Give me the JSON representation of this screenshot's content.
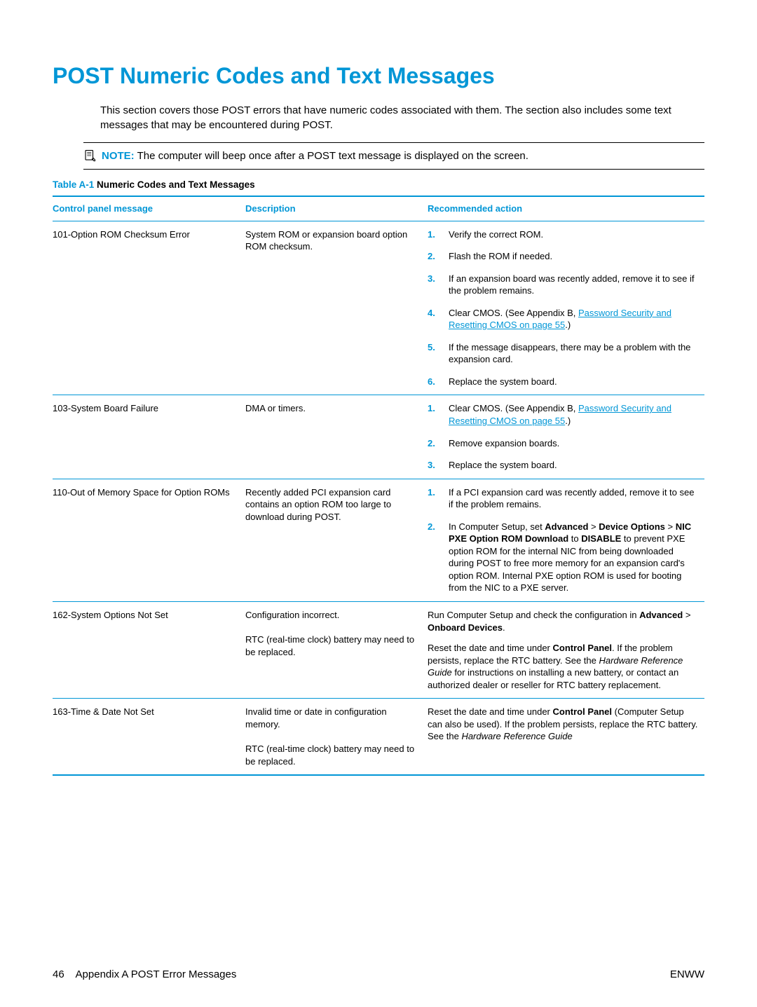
{
  "title": "POST Numeric Codes and Text Messages",
  "intro": "This section covers those POST errors that have numeric codes associated with them. The section also includes some text messages that may be encountered during POST.",
  "note": {
    "label": "NOTE:",
    "text": "The computer will beep once after a POST text message is displayed on the screen."
  },
  "table": {
    "caption_num": "Table A-1",
    "caption_text": "Numeric Codes and Text Messages",
    "columns": [
      "Control panel message",
      "Description",
      "Recommended action"
    ],
    "rows": [
      {
        "msg": "101-Option ROM Checksum Error",
        "desc": "System ROM or expansion board option ROM checksum.",
        "actions_type": "ol",
        "actions": [
          "Verify the correct ROM.",
          "Flash the ROM if needed.",
          "If an expansion board was recently added, remove it to see if the problem remains.",
          "Clear CMOS. (See Appendix B, <span class=\"link\" data-name=\"link-password-security\" data-interactable=\"true\">Password Security and Resetting CMOS on page 55</span>.)",
          "If the message disappears, there may be a problem with the expansion card.",
          "Replace the system board."
        ]
      },
      {
        "msg": "103-System Board Failure",
        "desc": "DMA or timers.",
        "actions_type": "ol",
        "actions": [
          "Clear CMOS. (See Appendix B, <span class=\"link\" data-name=\"link-password-security\" data-interactable=\"true\">Password Security and Resetting CMOS on page 55</span>.)",
          "Remove expansion boards.",
          "Replace the system board."
        ]
      },
      {
        "msg": "110-Out of Memory Space for Option ROMs",
        "desc": "Recently added PCI expansion card contains an option ROM too large to download during POST.",
        "actions_type": "ol",
        "actions": [
          "If a PCI expansion card was recently added, remove it to see if the problem remains.",
          "In Computer Setup, set <span class=\"bold\">Advanced</span> &gt; <span class=\"bold\">Device Options</span> &gt; <span class=\"bold\">NIC PXE Option ROM Download</span> to <span class=\"bold\">DISABLE</span> to prevent PXE option ROM for the internal NIC from being downloaded during POST to free more memory for an expansion card's option ROM. Internal PXE option ROM is used for booting from the NIC to a PXE server."
        ]
      },
      {
        "msg": "162-System Options Not Set",
        "desc": "Configuration incorrect.<br><br>RTC (real-time clock) battery may need to be replaced.",
        "actions_type": "para",
        "actions": [
          "Run Computer Setup and check the configuration in <span class=\"bold\">Advanced</span> &gt; <span class=\"bold\">Onboard Devices</span>.",
          "Reset the date and time under <span class=\"bold\">Control Panel</span>. If the problem persists, replace the RTC battery. See the <span class=\"italic\">Hardware Reference Guide</span> for instructions on installing a new battery, or contact an authorized dealer or reseller for RTC battery replacement."
        ]
      },
      {
        "msg": "163-Time & Date Not Set",
        "desc": "Invalid time or date in configuration memory.<br><br>RTC (real-time clock) battery may need to be replaced.",
        "actions_type": "para",
        "actions": [
          "Reset the date and time under <span class=\"bold\">Control Panel</span> (Computer Setup can also be used). If the problem persists, replace the RTC battery. See the <span class=\"italic\">Hardware Reference Guide</span>"
        ]
      }
    ]
  },
  "footer": {
    "left_page": "46",
    "left_text": "Appendix A   POST Error Messages",
    "right": "ENWW"
  },
  "colors": {
    "accent": "#0096d6",
    "text": "#000000",
    "background": "#ffffff"
  }
}
